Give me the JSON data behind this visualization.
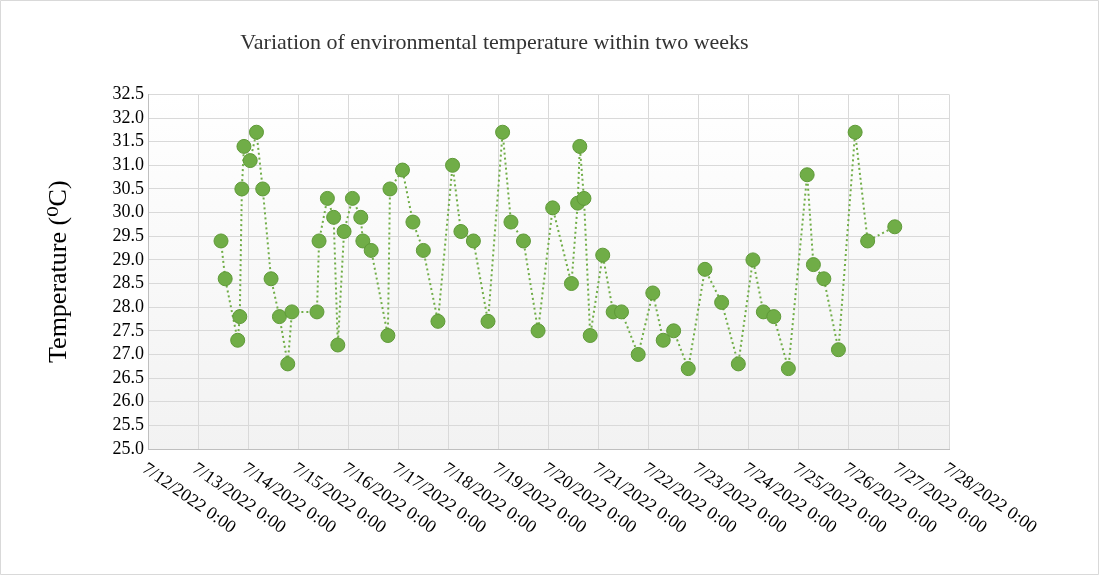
{
  "chart_data": {
    "type": "line",
    "title": "Variation of environmental temperature within two weeks",
    "ylabel": "Temperature (⁰C)",
    "x": [
      "2022-07-13T11:00",
      "2022-07-13T13:00",
      "2022-07-13T19:00",
      "2022-07-13T20:00",
      "2022-07-13T21:00",
      "2022-07-13T22:00",
      "2022-07-14T01:00",
      "2022-07-14T04:00",
      "2022-07-14T07:00",
      "2022-07-14T11:00",
      "2022-07-14T15:00",
      "2022-07-14T19:00",
      "2022-07-14T21:00",
      "2022-07-15T09:00",
      "2022-07-15T10:00",
      "2022-07-15T14:00",
      "2022-07-15T17:00",
      "2022-07-15T19:00",
      "2022-07-15T22:00",
      "2022-07-16T02:00",
      "2022-07-16T06:00",
      "2022-07-16T07:00",
      "2022-07-16T11:00",
      "2022-07-16T19:00",
      "2022-07-16T20:00",
      "2022-07-17T02:00",
      "2022-07-17T07:00",
      "2022-07-17T12:00",
      "2022-07-17T19:00",
      "2022-07-18T02:00",
      "2022-07-18T06:00",
      "2022-07-18T12:00",
      "2022-07-18T19:00",
      "2022-07-19T02:00",
      "2022-07-19T06:00",
      "2022-07-19T12:00",
      "2022-07-19T19:00",
      "2022-07-20T02:00",
      "2022-07-20T11:00",
      "2022-07-20T14:00",
      "2022-07-20T15:00",
      "2022-07-20T17:00",
      "2022-07-20T20:00",
      "2022-07-21T02:00",
      "2022-07-21T07:00",
      "2022-07-21T11:00",
      "2022-07-21T19:00",
      "2022-07-22T02:00",
      "2022-07-22T07:00",
      "2022-07-22T12:00",
      "2022-07-22T19:00",
      "2022-07-23T03:00",
      "2022-07-23T11:00",
      "2022-07-23T19:00",
      "2022-07-24T02:00",
      "2022-07-24T07:00",
      "2022-07-24T12:00",
      "2022-07-24T19:00",
      "2022-07-25T04:00",
      "2022-07-25T07:00",
      "2022-07-25T12:00",
      "2022-07-25T19:00",
      "2022-07-26T03:00",
      "2022-07-26T09:00",
      "2022-07-26T22:00"
    ],
    "series": [
      {
        "color": "#70ad47",
        "values": [
          29.4,
          28.6,
          27.3,
          27.8,
          30.5,
          31.4,
          31.1,
          31.7,
          30.5,
          28.6,
          27.8,
          26.8,
          27.9,
          27.9,
          29.4,
          30.3,
          29.9,
          27.2,
          29.6,
          30.3,
          29.9,
          29.4,
          29.2,
          27.4,
          30.5,
          30.9,
          29.8,
          29.2,
          27.7,
          31.0,
          29.6,
          29.4,
          27.7,
          31.7,
          29.8,
          29.4,
          27.5,
          30.1,
          28.5,
          30.2,
          31.4,
          30.3,
          27.4,
          29.1,
          27.9,
          27.9,
          27.0,
          28.3,
          27.3,
          27.5,
          26.7,
          28.8,
          28.1,
          26.8,
          29.0,
          27.9,
          27.8,
          26.7,
          30.8,
          28.9,
          28.6,
          27.1,
          31.7,
          29.4,
          29.7
        ]
      }
    ],
    "xlim": [
      "2022-07-12T00:00",
      "2022-07-28T00:00"
    ],
    "xticks": [
      {
        "value": "2022-07-12T00:00",
        "label": "7/12/2022 0:00"
      },
      {
        "value": "2022-07-13T00:00",
        "label": "7/13/2022 0:00"
      },
      {
        "value": "2022-07-14T00:00",
        "label": "7/14/2022 0:00"
      },
      {
        "value": "2022-07-15T00:00",
        "label": "7/15/2022 0:00"
      },
      {
        "value": "2022-07-16T00:00",
        "label": "7/16/2022 0:00"
      },
      {
        "value": "2022-07-17T00:00",
        "label": "7/17/2022 0:00"
      },
      {
        "value": "2022-07-18T00:00",
        "label": "7/18/2022 0:00"
      },
      {
        "value": "2022-07-19T00:00",
        "label": "7/19/2022 0:00"
      },
      {
        "value": "2022-07-20T00:00",
        "label": "7/20/2022 0:00"
      },
      {
        "value": "2022-07-21T00:00",
        "label": "7/21/2022 0:00"
      },
      {
        "value": "2022-07-22T00:00",
        "label": "7/22/2022 0:00"
      },
      {
        "value": "2022-07-23T00:00",
        "label": "7/23/2022 0:00"
      },
      {
        "value": "2022-07-24T00:00",
        "label": "7/24/2022 0:00"
      },
      {
        "value": "2022-07-25T00:00",
        "label": "7/25/2022 0:00"
      },
      {
        "value": "2022-07-26T00:00",
        "label": "7/26/2022 0:00"
      },
      {
        "value": "2022-07-27T00:00",
        "label": "7/27/2022 0:00"
      },
      {
        "value": "2022-07-28T00:00",
        "label": "7/28/2022 0:00"
      }
    ],
    "ylim": [
      25.0,
      32.5
    ],
    "yticks": [
      {
        "value": 25,
        "label": "25.0"
      },
      {
        "value": 25.5,
        "label": "25.5"
      },
      {
        "value": 26,
        "label": "26.0"
      },
      {
        "value": 26.5,
        "label": "26.5"
      },
      {
        "value": 27,
        "label": "27.0"
      },
      {
        "value": 27.5,
        "label": "27.5"
      },
      {
        "value": 28,
        "label": "28.0"
      },
      {
        "value": 28.5,
        "label": "28.5"
      },
      {
        "value": 29,
        "label": "29.0"
      },
      {
        "value": 29.5,
        "label": "29.5"
      },
      {
        "value": 30,
        "label": "30.0"
      },
      {
        "value": 30.5,
        "label": "30.5"
      },
      {
        "value": 31,
        "label": "31.0"
      },
      {
        "value": 31.5,
        "label": "31.5"
      },
      {
        "value": 32,
        "label": "32.0"
      },
      {
        "value": 32.5,
        "label": "32.5"
      }
    ],
    "grid": true,
    "legend": false,
    "marker": "circle",
    "line_style": "dotted"
  }
}
